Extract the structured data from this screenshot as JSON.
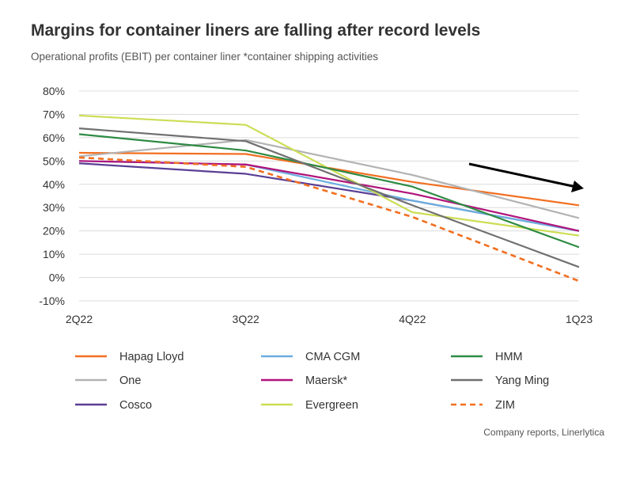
{
  "header": {
    "title": "Margins for container liners are falling after record levels",
    "subtitle": "Operational profits (EBIT) per container liner *container shipping activities"
  },
  "footer": {
    "source": "Company reports, Linerlytica"
  },
  "chart_data": {
    "type": "line",
    "title": "Margins for container liners are falling after record levels",
    "subtitle": "Operational profits (EBIT) per container liner *container shipping activities",
    "xlabel": "",
    "ylabel": "",
    "categories": [
      "2Q22",
      "3Q22",
      "4Q22",
      "1Q23"
    ],
    "ylim": [
      -10,
      80
    ],
    "yticks": [
      80,
      70,
      60,
      50,
      40,
      30,
      20,
      10,
      0,
      -10
    ],
    "ytick_labels": [
      "80%",
      "70%",
      "60%",
      "50%",
      "40%",
      "30%",
      "20%",
      "10%",
      "0%",
      "-10%"
    ],
    "grid": true,
    "legend_position": "bottom",
    "series": [
      {
        "name": "Hapag Lloyd",
        "color": "#f26f21",
        "dash": false,
        "values": [
          53.5,
          53,
          41,
          31
        ]
      },
      {
        "name": "One",
        "color": "#b3b3b3",
        "dash": false,
        "values": [
          52,
          59,
          44,
          25.5
        ]
      },
      {
        "name": "Cosco",
        "color": "#5b3f95",
        "dash": false,
        "values": [
          49,
          44.5,
          33,
          20
        ]
      },
      {
        "name": "CMA CGM",
        "color": "#6caee0",
        "dash": false,
        "values": [
          50,
          48.5,
          33,
          20
        ]
      },
      {
        "name": "Maersk*",
        "color": "#b0137b",
        "dash": false,
        "values": [
          50,
          48.5,
          36,
          20
        ]
      },
      {
        "name": "Evergreen",
        "color": "#ccdd55",
        "dash": false,
        "values": [
          69.5,
          65.5,
          28,
          18
        ]
      },
      {
        "name": "HMM",
        "color": "#2e8b44",
        "dash": false,
        "values": [
          61.5,
          54.5,
          39,
          13
        ]
      },
      {
        "name": "Yang Ming",
        "color": "#707070",
        "dash": false,
        "values": [
          64,
          58.5,
          31,
          4.5
        ]
      },
      {
        "name": "ZIM",
        "color": "#f26f21",
        "dash": true,
        "values": [
          51.5,
          47.5,
          26,
          -1.5
        ]
      }
    ]
  }
}
